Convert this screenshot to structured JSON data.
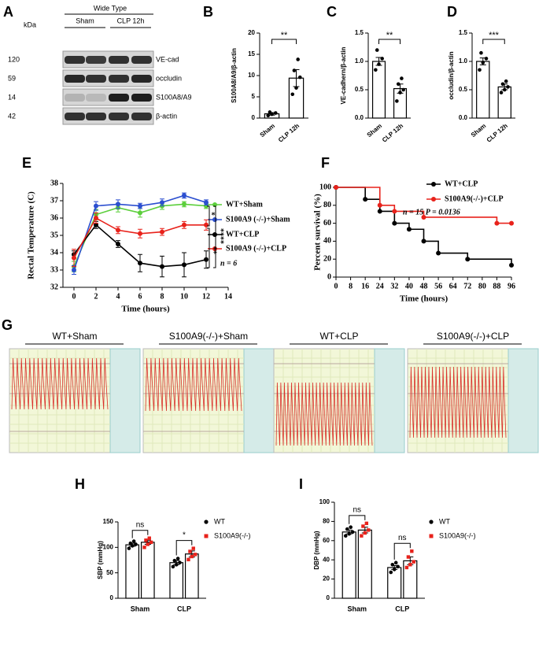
{
  "blot": {
    "panel_label": "A",
    "title": "Wide Type",
    "kda_label": "kDa",
    "groups": [
      "Sham",
      "CLP 12h"
    ],
    "rows": [
      {
        "kda": "120",
        "label": "VE-cad"
      },
      {
        "kda": "59",
        "label": "occludin"
      },
      {
        "kda": "14",
        "label": "S100A8/A9"
      },
      {
        "kda": "42",
        "label": "β-actin"
      }
    ]
  },
  "traces": {
    "panel_label": "G",
    "titles": [
      "WT+Sham",
      "S100A9(-/-)+Sham",
      "WT+CLP",
      "S100A9(-/-)+CLP"
    ]
  },
  "chart_data": [
    {
      "type": "bar",
      "panel_label": "B",
      "ylabel": "S100A8/A9/β-actin",
      "categories": [
        "Sham",
        "CLP 12h"
      ],
      "values": [
        1.0,
        9.4
      ],
      "errors": [
        0.3,
        2.0
      ],
      "points": [
        [
          0.6,
          0.9,
          1.2,
          1.4
        ],
        [
          5.6,
          7.1,
          9.6,
          11.2,
          13.8
        ]
      ],
      "color": "#000000",
      "ylim": [
        0,
        20
      ],
      "yticks": [
        0,
        5,
        10,
        15,
        20
      ],
      "significance": [
        "**"
      ]
    },
    {
      "type": "bar",
      "panel_label": "C",
      "ylabel": "VE-cadhern/β-actin",
      "categories": [
        "Sham",
        "CLP 12h"
      ],
      "values": [
        1.0,
        0.52
      ],
      "errors": [
        0.07,
        0.08
      ],
      "points": [
        [
          0.85,
          0.95,
          1.05,
          1.2
        ],
        [
          0.3,
          0.45,
          0.5,
          0.6,
          0.7
        ]
      ],
      "color": "#000000",
      "ylim": [
        0,
        1.5
      ],
      "yticks": [
        {
          "value": 0,
          "label": "0.0"
        },
        {
          "value": 0.5,
          "label": "0.5"
        },
        {
          "value": 1,
          "label": "1.0"
        },
        {
          "value": 1.5,
          "label": "1.5"
        }
      ],
      "significance": [
        "**"
      ]
    },
    {
      "type": "bar",
      "panel_label": "D",
      "ylabel": "occludin/β-actin",
      "categories": [
        "Sham",
        "CLP 12h"
      ],
      "values": [
        1.0,
        0.55
      ],
      "errors": [
        0.06,
        0.05
      ],
      "points": [
        [
          0.85,
          0.98,
          1.05,
          1.15
        ],
        [
          0.45,
          0.5,
          0.55,
          0.6,
          0.65
        ]
      ],
      "color": "#000000",
      "ylim": [
        0,
        1.5
      ],
      "yticks": [
        {
          "value": 0,
          "label": "0.0"
        },
        {
          "value": 0.5,
          "label": "0.5"
        },
        {
          "value": 1,
          "label": "1.0"
        },
        {
          "value": 1.5,
          "label": "1.5"
        }
      ],
      "significance": [
        "***"
      ]
    },
    {
      "type": "line",
      "panel_label": "E",
      "xlabel": "Time (hours)",
      "ylabel": "Rectal Temperature (C)",
      "x": [
        0,
        2,
        4,
        6,
        8,
        10,
        12
      ],
      "xlim": [
        -1,
        14
      ],
      "xticks": [
        0,
        2,
        4,
        6,
        8,
        10,
        12,
        14
      ],
      "ylim": [
        32,
        38
      ],
      "yticks": [
        32,
        33,
        34,
        35,
        36,
        37,
        38
      ],
      "series": [
        {
          "name": "WT+Sham",
          "color": "#5ccf3c",
          "values": [
            33.2,
            36.2,
            36.6,
            36.3,
            36.7,
            36.8,
            36.7
          ],
          "errors": [
            0.3,
            0.3,
            0.25,
            0.25,
            0.2,
            0.15,
            0.15
          ]
        },
        {
          "name": "S100A9 (-/-)+Sham",
          "color": "#2c4fd0",
          "values": [
            33.0,
            36.7,
            36.8,
            36.7,
            36.9,
            37.3,
            36.9
          ],
          "errors": [
            0.25,
            0.25,
            0.25,
            0.15,
            0.2,
            0.15,
            0.15
          ]
        },
        {
          "name": "WT+CLP",
          "color": "#000000",
          "values": [
            33.9,
            35.6,
            34.5,
            33.4,
            33.2,
            33.3,
            33.6
          ],
          "errors": [
            0.2,
            0.2,
            0.2,
            0.5,
            0.6,
            0.7,
            0.5
          ]
        },
        {
          "name": "S100A9 (-/-)+CLP",
          "color": "#e8221b",
          "values": [
            33.7,
            36.0,
            35.3,
            35.1,
            35.2,
            35.6,
            35.6
          ],
          "errors": [
            0.5,
            0.3,
            0.2,
            0.25,
            0.2,
            0.2,
            0.3
          ]
        }
      ],
      "significance": [
        "*",
        "****",
        "**"
      ],
      "annotation": "n = 6"
    },
    {
      "type": "step",
      "panel_label": "F",
      "xlabel": "Time (hours)",
      "ylabel": "Percent survival (%)",
      "xlim": [
        0,
        96
      ],
      "xticks": [
        0,
        8,
        16,
        24,
        32,
        40,
        48,
        56,
        64,
        72,
        80,
        88,
        96
      ],
      "ylim": [
        0,
        100
      ],
      "yticks": [
        0,
        20,
        40,
        60,
        80,
        100
      ],
      "series": [
        {
          "name": "WT+CLP",
          "color": "#000000",
          "x": [
            0,
            16,
            24,
            32,
            40,
            48,
            56,
            72,
            96
          ],
          "values": [
            100,
            86.7,
            73.3,
            60,
            53.3,
            40,
            26.7,
            20,
            13.3
          ]
        },
        {
          "name": "S100A9(-/-)+CLP",
          "color": "#e8221b",
          "x": [
            0,
            24,
            32,
            48,
            88,
            96
          ],
          "values": [
            100,
            80,
            73.3,
            66.7,
            60,
            60
          ]
        }
      ],
      "annotation": "n = 15  P = 0.0136"
    },
    {
      "type": "bar",
      "panel_label": "H",
      "ylabel": "SBP (mmHg)",
      "categories": [
        "Sham",
        "CLP"
      ],
      "ylim": [
        0,
        150
      ],
      "yticks": [
        0,
        50,
        100,
        150
      ],
      "series": [
        {
          "name": "WT",
          "color": "#000000",
          "values": [
            105,
            70
          ],
          "errors": [
            3,
            4
          ],
          "points": [
            [
              98,
              103,
              106,
              108,
              112
            ],
            [
              62,
              66,
              70,
              74,
              78
            ]
          ]
        },
        {
          "name": "S100A9(-/-)",
          "color": "#e8221b",
          "values": [
            110,
            87
          ],
          "errors": [
            4,
            6
          ],
          "points": [
            [
              100,
              106,
              110,
              114,
              118
            ],
            [
              76,
              82,
              86,
              92,
              98
            ]
          ]
        }
      ],
      "significance": [
        "ns",
        "*"
      ]
    },
    {
      "type": "bar",
      "panel_label": "I",
      "ylabel": "DBP (mmHg)",
      "categories": [
        "Sham",
        "CLP"
      ],
      "ylim": [
        0,
        100
      ],
      "yticks": [
        0,
        20,
        40,
        60,
        80,
        100
      ],
      "series": [
        {
          "name": "WT",
          "color": "#000000",
          "values": [
            69,
            32
          ],
          "errors": [
            2,
            2
          ],
          "points": [
            [
              65,
              67,
              69,
              72,
              74
            ],
            [
              27,
              30,
              33,
              35,
              37
            ]
          ]
        },
        {
          "name": "S100A9(-/-)",
          "color": "#e8221b",
          "values": [
            71,
            39
          ],
          "errors": [
            3,
            4
          ],
          "points": [
            [
              65,
              68,
              71,
              75,
              78
            ],
            [
              32,
              35,
              38,
              43,
              49
            ]
          ]
        }
      ],
      "significance": [
        "ns",
        "ns"
      ]
    }
  ]
}
